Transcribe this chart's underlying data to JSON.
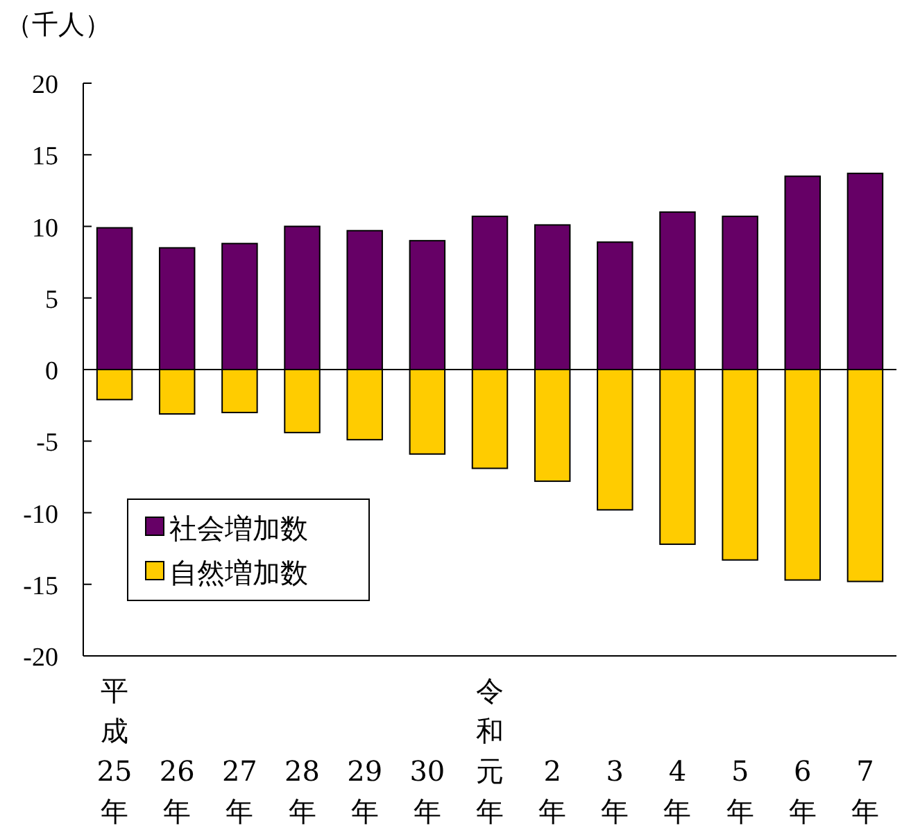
{
  "chart_data": {
    "type": "bar",
    "stacked": true,
    "ylabel": "（千人）",
    "categories": [
      "平成25年",
      "26年",
      "27年",
      "28年",
      "29年",
      "30年",
      "令和元年",
      "2年",
      "3年",
      "4年",
      "5年",
      "6年",
      "7年"
    ],
    "series": [
      {
        "name": "社会増加数",
        "color": "#660066",
        "values": [
          9.9,
          8.5,
          8.8,
          10.0,
          9.7,
          9.0,
          10.7,
          10.1,
          8.9,
          11.0,
          10.7,
          13.5,
          13.7
        ]
      },
      {
        "name": "自然増加数",
        "color": "#ffcc00",
        "values": [
          -2.1,
          -3.1,
          -3.0,
          -4.4,
          -4.9,
          -5.9,
          -6.9,
          -7.8,
          -9.8,
          -12.2,
          -13.3,
          -14.7,
          -14.8
        ]
      }
    ],
    "ylim": [
      -20,
      20
    ],
    "yticks": [
      -20,
      -15,
      -10,
      -5,
      0,
      5,
      10,
      15,
      20
    ],
    "legend": "bottom left"
  }
}
